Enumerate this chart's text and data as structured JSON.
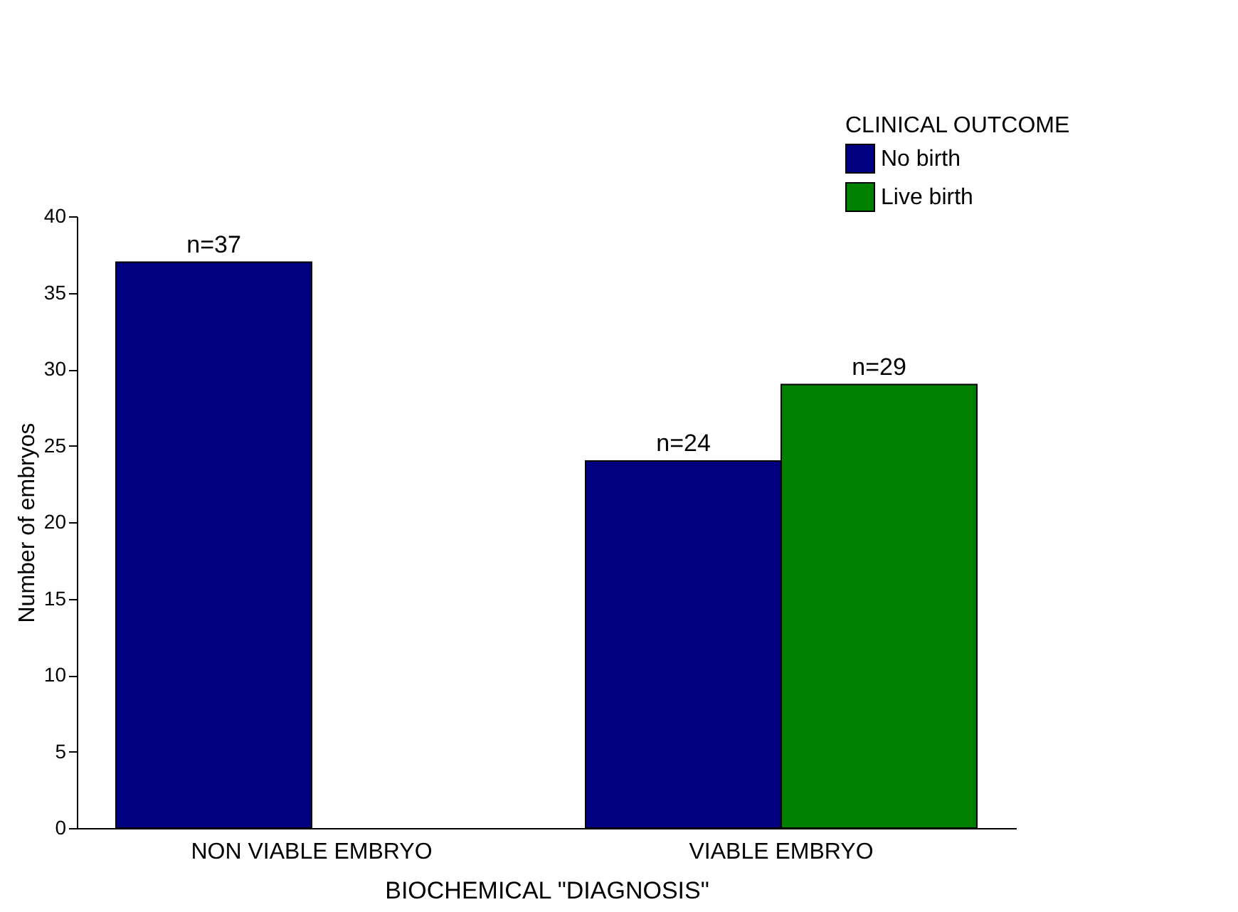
{
  "chart_data": {
    "type": "bar",
    "xlabel": "BIOCHEMICAL \"DIAGNOSIS\"",
    "ylabel": "Number of embryos",
    "legend_title": "CLINICAL OUTCOME",
    "categories": [
      "NON VIABLE EMBRYO",
      "VIABLE EMBRYO"
    ],
    "series": [
      {
        "name": "No birth",
        "color": "#000080",
        "values": [
          37,
          24
        ],
        "value_labels": [
          "n=37",
          "n=24"
        ]
      },
      {
        "name": "Live birth",
        "color": "#008000",
        "values": [
          null,
          29
        ],
        "value_labels": [
          null,
          "n=29"
        ]
      }
    ],
    "ylim": [
      0,
      40
    ],
    "yticks": [
      0,
      5,
      10,
      15,
      20,
      25,
      30,
      35,
      40
    ],
    "grid": false,
    "legend": "top right"
  }
}
